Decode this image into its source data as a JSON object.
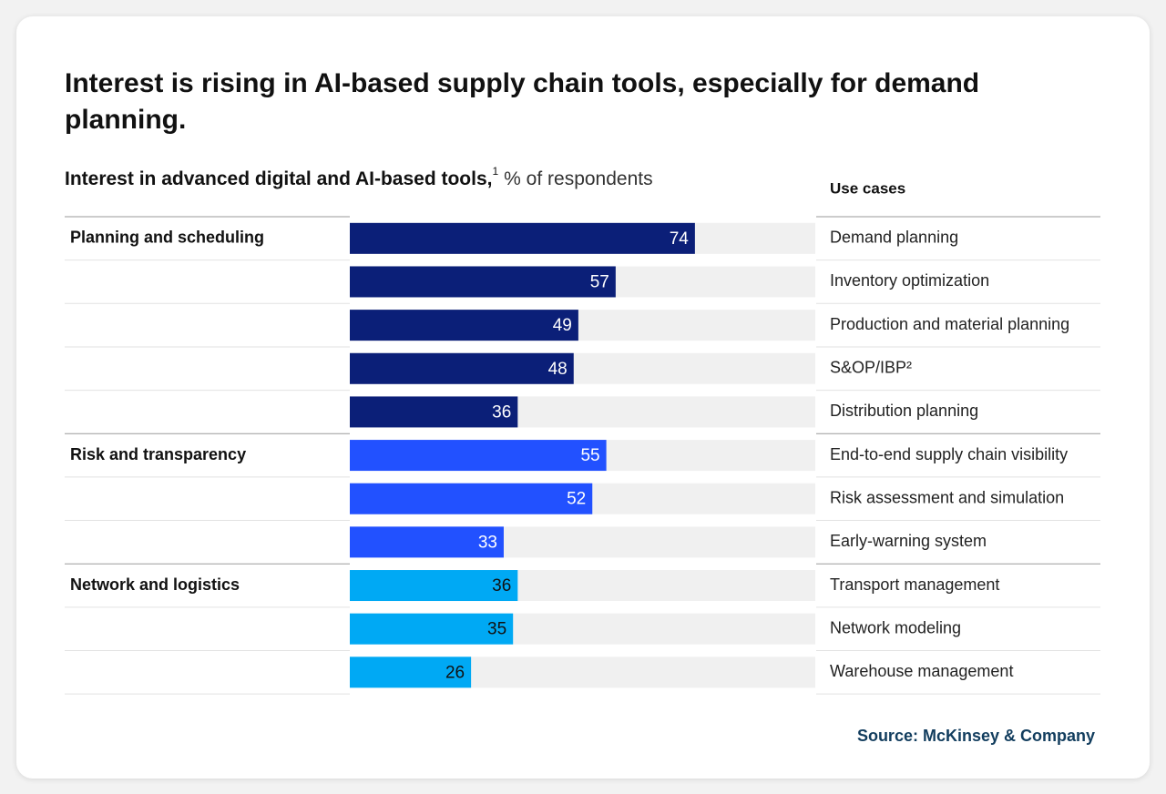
{
  "chart_data": {
    "type": "bar",
    "orientation": "horizontal",
    "title": "Interest is rising in AI-based supply chain tools, especially for demand planning.",
    "subtitle": "Interest in advanced digital and AI-based tools,",
    "subtitle_note": "1",
    "subtitle_unit": "% of respondents",
    "category_header": "Use cases",
    "xlim": [
      0,
      100
    ],
    "groups": [
      {
        "name": "Planning and scheduling",
        "color": "#0b1f78",
        "label_color": "#ffffff",
        "categories": [
          "Demand planning",
          "Inventory optimization",
          "Production and material planning",
          "S&OP/IBP²",
          "Distribution planning"
        ],
        "values": [
          74,
          57,
          49,
          48,
          36
        ]
      },
      {
        "name": "Risk and transparency",
        "color": "#2251ff",
        "label_color": "#ffffff",
        "categories": [
          "End-to-end supply chain visibility",
          "Risk assessment and simulation",
          "Early-warning system"
        ],
        "values": [
          55,
          52,
          33
        ]
      },
      {
        "name": "Network and logistics",
        "color": "#00a9f4",
        "label_color": "#111111",
        "categories": [
          "Transport management",
          "Network modeling",
          "Warehouse management"
        ],
        "values": [
          36,
          35,
          26
        ]
      }
    ],
    "source": "Source: McKinsey & Company"
  }
}
